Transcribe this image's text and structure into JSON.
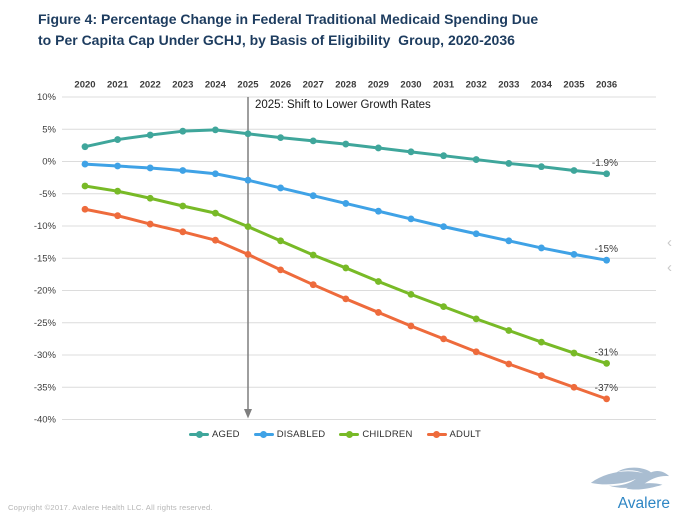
{
  "title": {
    "lines": [
      "Figure 4: Percentage Change in Federal Traditional Medicaid Spending Due",
      "to Per Capita Cap Under GCHJ, by Basis of Eligibility  Group, 2020-2036"
    ],
    "color": "#1d3c5f"
  },
  "chart_data": {
    "type": "line",
    "x_years": [
      "2020",
      "2021",
      "2022",
      "2023",
      "2024",
      "2025",
      "2026",
      "2027",
      "2028",
      "2029",
      "2030",
      "2031",
      "2032",
      "2033",
      "2034",
      "2035",
      "2036"
    ],
    "y_ticks": [
      "10%",
      "5%",
      "0%",
      "-5%",
      "-10%",
      "-15%",
      "-20%",
      "-25%",
      "-30%",
      "-35%",
      "-40%"
    ],
    "ylim": [
      -40,
      10
    ],
    "grid": true,
    "legend_position": "bottom",
    "grid_color": "#dcdcdc",
    "axis_text_color": "#3c3c3c",
    "annotation": {
      "text": "2025: Shift to Lower Growth Rates",
      "year": "2025"
    },
    "vline": {
      "year": "2025",
      "color": "#7f7f7f"
    },
    "series": [
      {
        "name": "AGED",
        "color": "#3fa69b",
        "end_label": "-1.9%",
        "values": [
          2.3,
          3.4,
          4.1,
          4.7,
          4.9,
          4.3,
          3.7,
          3.2,
          2.7,
          2.1,
          1.5,
          0.9,
          0.3,
          -0.3,
          -0.8,
          -1.4,
          -1.9
        ]
      },
      {
        "name": "DISABLED",
        "color": "#3fa2e6",
        "end_label": "-15%",
        "values": [
          -0.4,
          -0.7,
          -1.0,
          -1.4,
          -1.9,
          -2.9,
          -4.1,
          -5.3,
          -6.5,
          -7.7,
          -8.9,
          -10.1,
          -11.2,
          -12.3,
          -13.4,
          -14.4,
          -15.3
        ]
      },
      {
        "name": "CHILDREN",
        "color": "#78ba27",
        "end_label": "-31%",
        "values": [
          -3.8,
          -4.6,
          -5.7,
          -6.9,
          -8.0,
          -10.1,
          -12.3,
          -14.5,
          -16.5,
          -18.6,
          -20.6,
          -22.5,
          -24.4,
          -26.2,
          -28.0,
          -29.7,
          -31.3
        ]
      },
      {
        "name": "ADULT",
        "color": "#ee6b3c",
        "end_label": "-37%",
        "values": [
          -7.4,
          -8.4,
          -9.7,
          -10.9,
          -12.2,
          -14.4,
          -16.8,
          -19.1,
          -21.3,
          -23.4,
          -25.5,
          -27.5,
          -29.5,
          -31.4,
          -33.2,
          -35.0,
          -36.8
        ]
      }
    ]
  },
  "page_nav": {
    "chevron_top": "‹",
    "chevron_bottom": "‹"
  },
  "footer": {
    "copyright": "Copyright ©2017. Avalere Health LLC. All rights reserved.",
    "logo_text": "Avalere"
  }
}
